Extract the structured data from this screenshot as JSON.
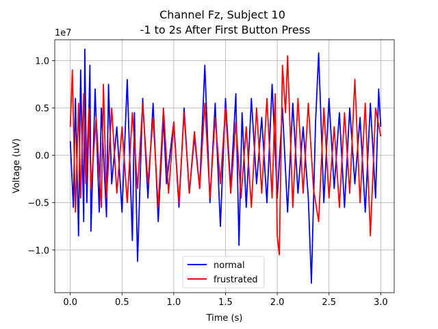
{
  "chart_data": {
    "type": "line",
    "title_line1": "Channel Fz, Subject 10",
    "title_line2": "-1 to 2s After First Button Press",
    "xlabel": "Time (s)",
    "ylabel": "Voltage (uV)",
    "y_offset_label": "1e7",
    "xlim": [
      -0.15,
      3.13
    ],
    "ylim": [
      -1.45,
      1.22
    ],
    "y_scale_factor": 10000000,
    "xticks": [
      {
        "value": 0.0,
        "label": "0.0"
      },
      {
        "value": 0.5,
        "label": "0.5"
      },
      {
        "value": 1.0,
        "label": "1.0"
      },
      {
        "value": 1.5,
        "label": "1.5"
      },
      {
        "value": 2.0,
        "label": "2.0"
      },
      {
        "value": 2.5,
        "label": "2.5"
      },
      {
        "value": 3.0,
        "label": "3.0"
      }
    ],
    "yticks": [
      {
        "value": -1.0,
        "label": "−1.0"
      },
      {
        "value": -0.5,
        "label": "−0.5"
      },
      {
        "value": 0.0,
        "label": "0.0"
      },
      {
        "value": 0.5,
        "label": "0.5"
      },
      {
        "value": 1.0,
        "label": "1.0"
      }
    ],
    "grid": true,
    "legend_position": "lower-center",
    "series": [
      {
        "name": "normal",
        "color": "#0000ff",
        "x": [
          0.0,
          0.03,
          0.05,
          0.08,
          0.1,
          0.13,
          0.14,
          0.16,
          0.19,
          0.2,
          0.24,
          0.28,
          0.3,
          0.35,
          0.37,
          0.4,
          0.45,
          0.5,
          0.55,
          0.6,
          0.62,
          0.65,
          0.7,
          0.75,
          0.8,
          0.85,
          0.9,
          0.93,
          1.0,
          1.05,
          1.1,
          1.15,
          1.2,
          1.25,
          1.3,
          1.35,
          1.4,
          1.45,
          1.5,
          1.55,
          1.6,
          1.63,
          1.66,
          1.7,
          1.75,
          1.8,
          1.85,
          1.9,
          1.95,
          2.0,
          2.05,
          2.1,
          2.15,
          2.2,
          2.25,
          2.3,
          2.33,
          2.37,
          2.4,
          2.45,
          2.5,
          2.55,
          2.6,
          2.65,
          2.7,
          2.75,
          2.8,
          2.85,
          2.9,
          2.95,
          2.98,
          3.0
        ],
        "y": [
          0.15,
          -0.55,
          0.6,
          -0.85,
          0.9,
          -0.7,
          1.12,
          -0.5,
          0.95,
          -0.8,
          0.7,
          -0.6,
          0.5,
          -0.65,
          0.75,
          -0.3,
          0.3,
          -0.6,
          0.8,
          -0.9,
          0.45,
          -1.12,
          0.6,
          -0.45,
          0.55,
          -0.7,
          0.4,
          -0.3,
          0.35,
          -0.55,
          0.5,
          -0.4,
          0.2,
          -0.35,
          0.95,
          -0.5,
          0.55,
          -0.75,
          0.6,
          -0.35,
          0.65,
          -0.95,
          0.45,
          -0.55,
          0.6,
          -0.3,
          0.4,
          -0.5,
          0.75,
          -0.45,
          0.5,
          -0.6,
          0.55,
          -0.4,
          0.3,
          -0.45,
          -1.35,
          0.35,
          1.08,
          -0.5,
          0.6,
          -0.35,
          0.45,
          -0.55,
          0.5,
          -0.3,
          0.4,
          -0.6,
          0.55,
          -0.45,
          0.7,
          0.3
        ]
      },
      {
        "name": "frustrated",
        "color": "#ff0000",
        "x": [
          0.0,
          0.02,
          0.05,
          0.08,
          0.1,
          0.13,
          0.15,
          0.18,
          0.2,
          0.25,
          0.3,
          0.32,
          0.35,
          0.4,
          0.45,
          0.5,
          0.55,
          0.6,
          0.65,
          0.7,
          0.75,
          0.8,
          0.85,
          0.9,
          0.95,
          1.0,
          1.05,
          1.1,
          1.15,
          1.2,
          1.25,
          1.3,
          1.35,
          1.4,
          1.45,
          1.5,
          1.55,
          1.6,
          1.65,
          1.7,
          1.75,
          1.8,
          1.85,
          1.9,
          1.95,
          1.98,
          2.0,
          2.02,
          2.05,
          2.08,
          2.1,
          2.15,
          2.2,
          2.25,
          2.3,
          2.35,
          2.4,
          2.45,
          2.5,
          2.55,
          2.6,
          2.65,
          2.7,
          2.75,
          2.8,
          2.85,
          2.9,
          2.95,
          3.0
        ],
        "y": [
          0.3,
          0.9,
          -0.6,
          0.55,
          -0.45,
          0.65,
          -0.3,
          0.5,
          -0.35,
          0.4,
          -0.55,
          0.75,
          -0.45,
          0.5,
          -0.4,
          0.3,
          -0.5,
          0.45,
          -0.35,
          0.55,
          -0.3,
          0.4,
          -0.55,
          0.5,
          -0.4,
          0.35,
          -0.5,
          0.45,
          -0.4,
          0.25,
          -0.35,
          0.55,
          -0.45,
          0.4,
          -0.3,
          0.5,
          -0.4,
          0.35,
          -0.45,
          0.3,
          -0.55,
          0.5,
          -0.4,
          0.6,
          -0.45,
          0.65,
          -0.85,
          -1.05,
          0.95,
          0.45,
          1.05,
          -0.55,
          0.6,
          -0.4,
          0.55,
          -0.35,
          -0.7,
          0.5,
          -0.45,
          0.3,
          -0.55,
          0.45,
          -0.4,
          0.8,
          -0.5,
          0.55,
          -0.85,
          0.5,
          0.2
        ]
      }
    ]
  }
}
